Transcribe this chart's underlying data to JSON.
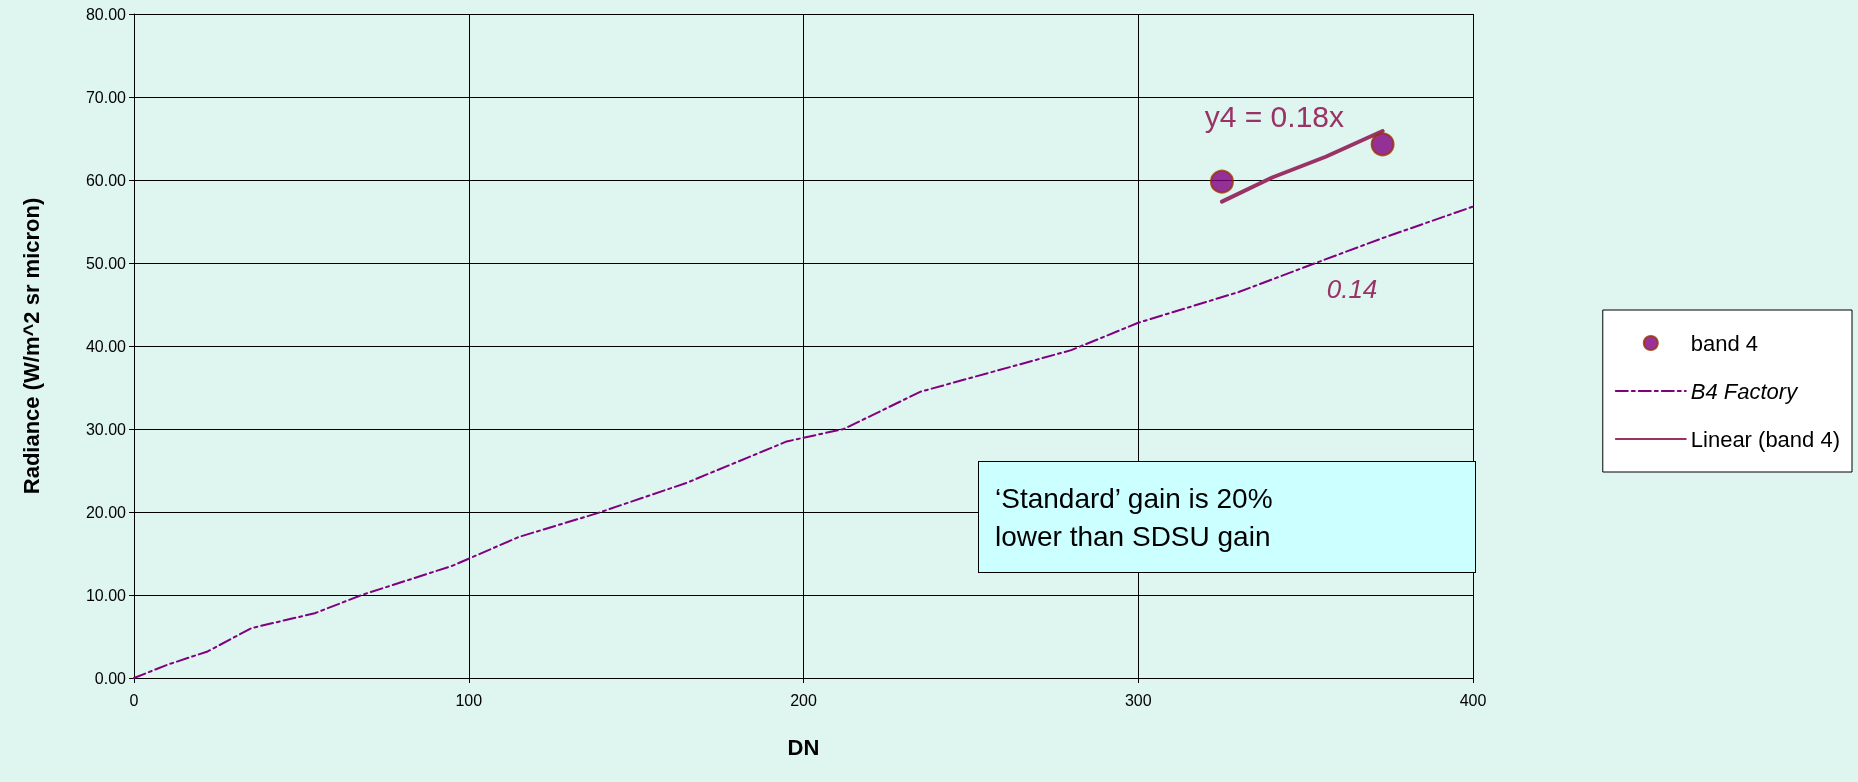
{
  "chart_data": {
    "type": "scatter",
    "xlabel": "DN",
    "ylabel": "Radiance (W/m^2 sr micron)",
    "xlim": [
      0,
      400
    ],
    "xticks": [
      0,
      100,
      200,
      300,
      400
    ],
    "ylim": [
      0,
      80
    ],
    "yticks": [
      {
        "value": 0,
        "label": "0.00"
      },
      {
        "value": 10,
        "label": "10.00"
      },
      {
        "value": 20,
        "label": "20.00"
      },
      {
        "value": 30,
        "label": "30.00"
      },
      {
        "value": 40,
        "label": "40.00"
      },
      {
        "value": 50,
        "label": "50.00"
      },
      {
        "value": 60,
        "label": "60.00"
      },
      {
        "value": 70,
        "label": "70.00"
      },
      {
        "value": 80,
        "label": "80.00"
      }
    ],
    "grid": true,
    "legend": "right",
    "series": [
      {
        "name": "band 4",
        "type": "scatter",
        "color": "#800080",
        "marker": "circle",
        "x": [
          325,
          373
        ],
        "values": [
          59.8,
          64.3
        ]
      },
      {
        "name": "B4 Factory",
        "type": "line",
        "color": "#800080",
        "line_style": "dashed",
        "marker": "none",
        "x": [
          0,
          10,
          22,
          35,
          54,
          68,
          95,
          115,
          138,
          165,
          195,
          212,
          235,
          280,
          300,
          330,
          355,
          373,
          400
        ],
        "values": [
          0,
          1.6,
          3.2,
          6,
          7.8,
          10,
          13.5,
          17,
          19.8,
          23.5,
          28.5,
          30,
          34.5,
          39.5,
          42.8,
          46.5,
          50.3,
          53,
          56.8
        ]
      },
      {
        "name": "Linear (band 4)",
        "type": "line",
        "color": "#993366",
        "line_style": "solid",
        "marker": "none",
        "x": [
          325,
          340,
          356,
          373
        ],
        "values": [
          57.4,
          60.3,
          62.8,
          65.9
        ]
      }
    ],
    "annotations": [
      "y4 = 0.18x",
      "0.14",
      "‘Standard’ gain is 20% lower than SDSU gain"
    ]
  }
}
